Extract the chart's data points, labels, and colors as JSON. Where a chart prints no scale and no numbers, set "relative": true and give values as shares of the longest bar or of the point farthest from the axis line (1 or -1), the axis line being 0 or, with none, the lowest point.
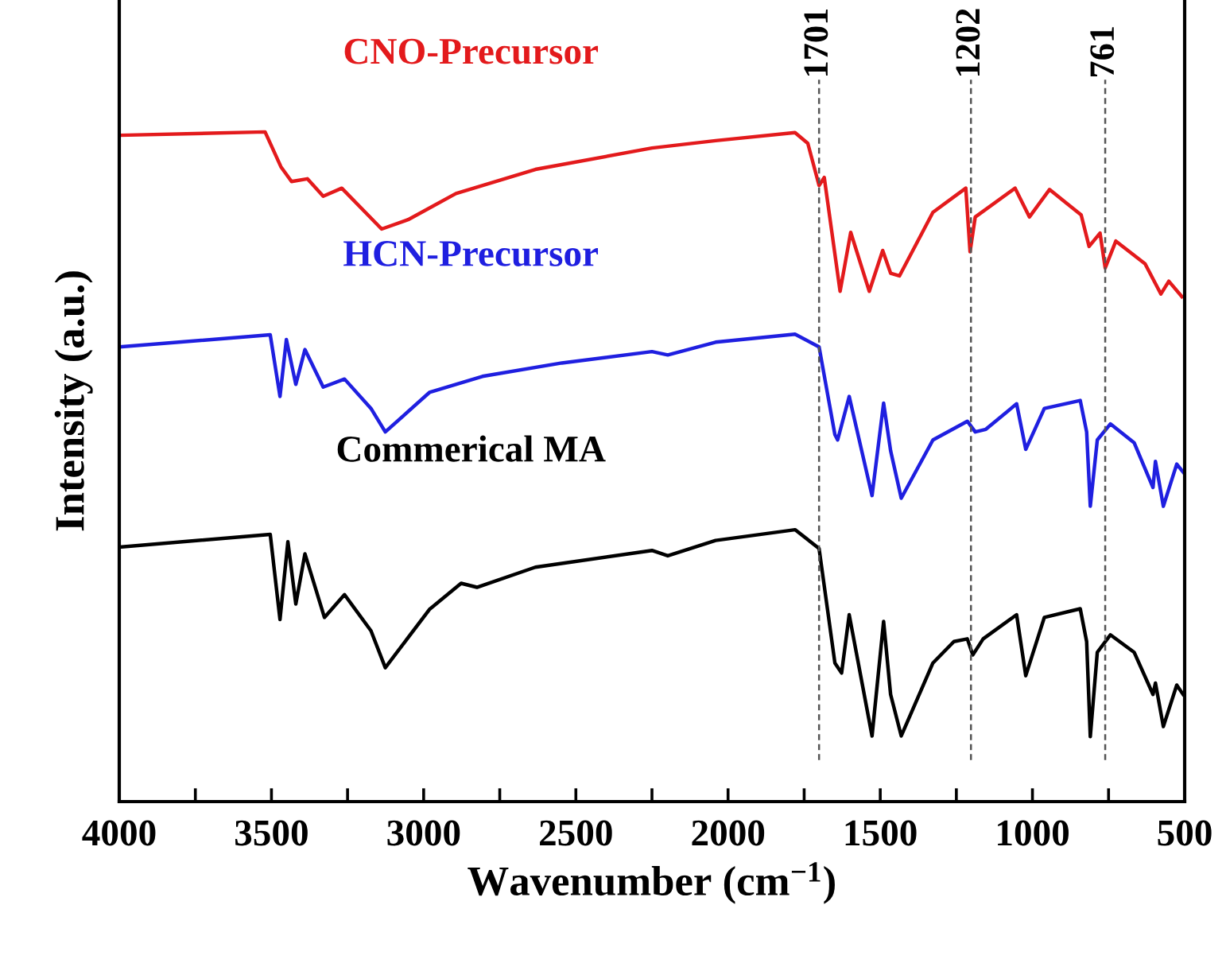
{
  "chart_data": {
    "type": "line",
    "relative": true,
    "xlabel": "Wavenumber (cm$^{−1}$)",
    "ylabel": "Intensity (a.u.)",
    "xlim": [
      4000,
      500
    ],
    "xticks": [
      4000,
      {
        "value": 3750,
        "label": null
      },
      3500,
      {
        "value": 3250,
        "label": null
      },
      3000,
      {
        "value": 2750,
        "label": null
      },
      2500,
      {
        "value": 2250,
        "label": null
      },
      2000,
      {
        "value": 1750,
        "label": null
      },
      1500,
      {
        "value": 1250,
        "label": null
      },
      1000,
      {
        "value": 750,
        "label": null
      },
      500
    ],
    "tick_labels": "x",
    "grid": false,
    "legend": false,
    "marker": "none",
    "line_style": "solid",
    "series": [
      {
        "name": "CNO-Precursor",
        "color": "#e31a1c",
        "x": [
          4000,
          3521,
          3469,
          3434,
          3382,
          3330,
          3269,
          3138,
          3051,
          2894,
          2633,
          2250,
          2041,
          1780,
          1738,
          1701,
          1684,
          1632,
          1597,
          1536,
          1492,
          1466,
          1437,
          1327,
          1219,
          1205,
          1188,
          1057,
          1010,
          944,
          840,
          814,
          778,
          761,
          726,
          630,
          578,
          552,
          509
        ],
        "values": [
          0.995,
          1.0,
          0.948,
          0.926,
          0.93,
          0.904,
          0.916,
          0.855,
          0.869,
          0.908,
          0.944,
          0.976,
          0.987,
          0.999,
          0.983,
          0.92,
          0.932,
          0.762,
          0.85,
          0.762,
          0.823,
          0.789,
          0.785,
          0.88,
          0.916,
          0.821,
          0.873,
          0.916,
          0.873,
          0.914,
          0.876,
          0.829,
          0.849,
          0.797,
          0.837,
          0.803,
          0.758,
          0.777,
          0.754
        ]
      },
      {
        "name": "HCN-Precursor",
        "color": "#1f1fe0",
        "x": [
          4000,
          3504,
          3472,
          3451,
          3420,
          3390,
          3330,
          3260,
          3173,
          3126,
          2981,
          2807,
          2546,
          2250,
          2198,
          2041,
          1780,
          1701,
          1649,
          1640,
          1602,
          1527,
          1489,
          1466,
          1431,
          1327,
          1214,
          1188,
          1153,
          1052,
          1022,
          961,
          843,
          822,
          810,
          787,
          744,
          666,
          604,
          596,
          570,
          526,
          505
        ],
        "values": [
          0.679,
          0.697,
          0.605,
          0.69,
          0.623,
          0.675,
          0.619,
          0.631,
          0.587,
          0.552,
          0.611,
          0.635,
          0.655,
          0.672,
          0.667,
          0.686,
          0.698,
          0.679,
          0.548,
          0.54,
          0.605,
          0.457,
          0.595,
          0.524,
          0.453,
          0.54,
          0.568,
          0.552,
          0.556,
          0.594,
          0.526,
          0.587,
          0.599,
          0.552,
          0.441,
          0.54,
          0.564,
          0.536,
          0.469,
          0.508,
          0.441,
          0.504,
          0.492
        ]
      },
      {
        "name": "Commerical MA",
        "color": "#000000",
        "x": [
          4000,
          3504,
          3472,
          3446,
          3420,
          3390,
          3326,
          3260,
          3173,
          3126,
          2981,
          2877,
          2825,
          2633,
          2250,
          2198,
          2041,
          1780,
          1701,
          1649,
          1627,
          1602,
          1527,
          1489,
          1466,
          1431,
          1327,
          1258,
          1214,
          1196,
          1162,
          1052,
          1022,
          961,
          843,
          822,
          810,
          787,
          744,
          666,
          604,
          596,
          570,
          526,
          505
        ],
        "values": [
          0.38,
          0.399,
          0.272,
          0.388,
          0.295,
          0.37,
          0.275,
          0.309,
          0.255,
          0.2,
          0.287,
          0.326,
          0.32,
          0.35,
          0.375,
          0.367,
          0.39,
          0.406,
          0.378,
          0.207,
          0.192,
          0.279,
          0.098,
          0.269,
          0.16,
          0.098,
          0.207,
          0.239,
          0.243,
          0.219,
          0.243,
          0.279,
          0.188,
          0.275,
          0.288,
          0.239,
          0.097,
          0.223,
          0.249,
          0.223,
          0.16,
          0.177,
          0.112,
          0.174,
          0.16
        ]
      }
    ],
    "ref_lines": [
      {
        "axis": "x",
        "value": 1701,
        "label": "1701",
        "color": "#555555",
        "line_style": "dashed"
      },
      {
        "axis": "x",
        "value": 1202,
        "label": "1202",
        "color": "#555555",
        "line_style": "dashed"
      },
      {
        "axis": "x",
        "value": 761,
        "label": "761",
        "color": "#555555",
        "line_style": "dashed"
      }
    ]
  }
}
